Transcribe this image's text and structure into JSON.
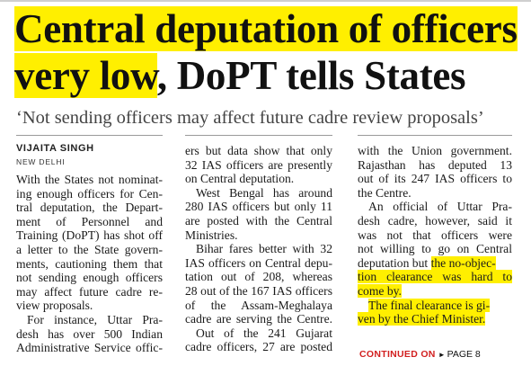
{
  "headline": {
    "line1": "Central deputation of officers",
    "line2_highlight": "very low",
    "line2_rest": ", DoPT tells States"
  },
  "deck": "‘Not sending officers may affect future cadre review proposals’",
  "byline": "VIJAITA SINGH",
  "dateline": "NEW DELHI",
  "columns": {
    "col1": [
      "With the States not nominat-",
      "ing enough officers for Cen-",
      "tral deputation, the Depart-",
      "ment of Personnel and",
      "Training (DoPT) has shot off",
      "a letter to the State govern-",
      "ments, cautioning them that",
      "not sending enough officers",
      "may affect future cadre re-",
      "view proposals.",
      "For instance, Uttar Pra-",
      "desh has over 500 Indian",
      "Administrative Service offic-"
    ],
    "col2": [
      "ers but data show that only",
      "32 IAS officers are presently",
      "on Central deputation.",
      "West Bengal has around",
      "280 IAS officers but only 11",
      "are posted with the Central",
      "Ministries.",
      "Bihar fares better with 32",
      "IAS officers on Central depu-",
      "tation out of 208, whereas",
      "28 out of the 167 IAS officers",
      "of the Assam-Meghalaya",
      "cadre are serving the Centre.",
      "Out of the 241 Gujarat",
      "cadre officers, 27 are posted"
    ],
    "col3": [
      "with the Union government.",
      "Rajasthan has deputed 13",
      "out of its 247 IAS officers to",
      "the Centre.",
      "An official of Uttar Pra-",
      "desh cadre, however, said it",
      "was not that officers were",
      "not willing to go on Central",
      "deputation but ",
      "the no-objec-",
      "tion clearance was hard to",
      "come by.",
      "The final clearance is gi-",
      "ven by the Chief Minister."
    ]
  },
  "continued": {
    "label": "CONTINUED ON",
    "arrow": "►",
    "page": "PAGE 8"
  },
  "colors": {
    "highlight": "#ffef00",
    "accent_red": "#d22020"
  }
}
